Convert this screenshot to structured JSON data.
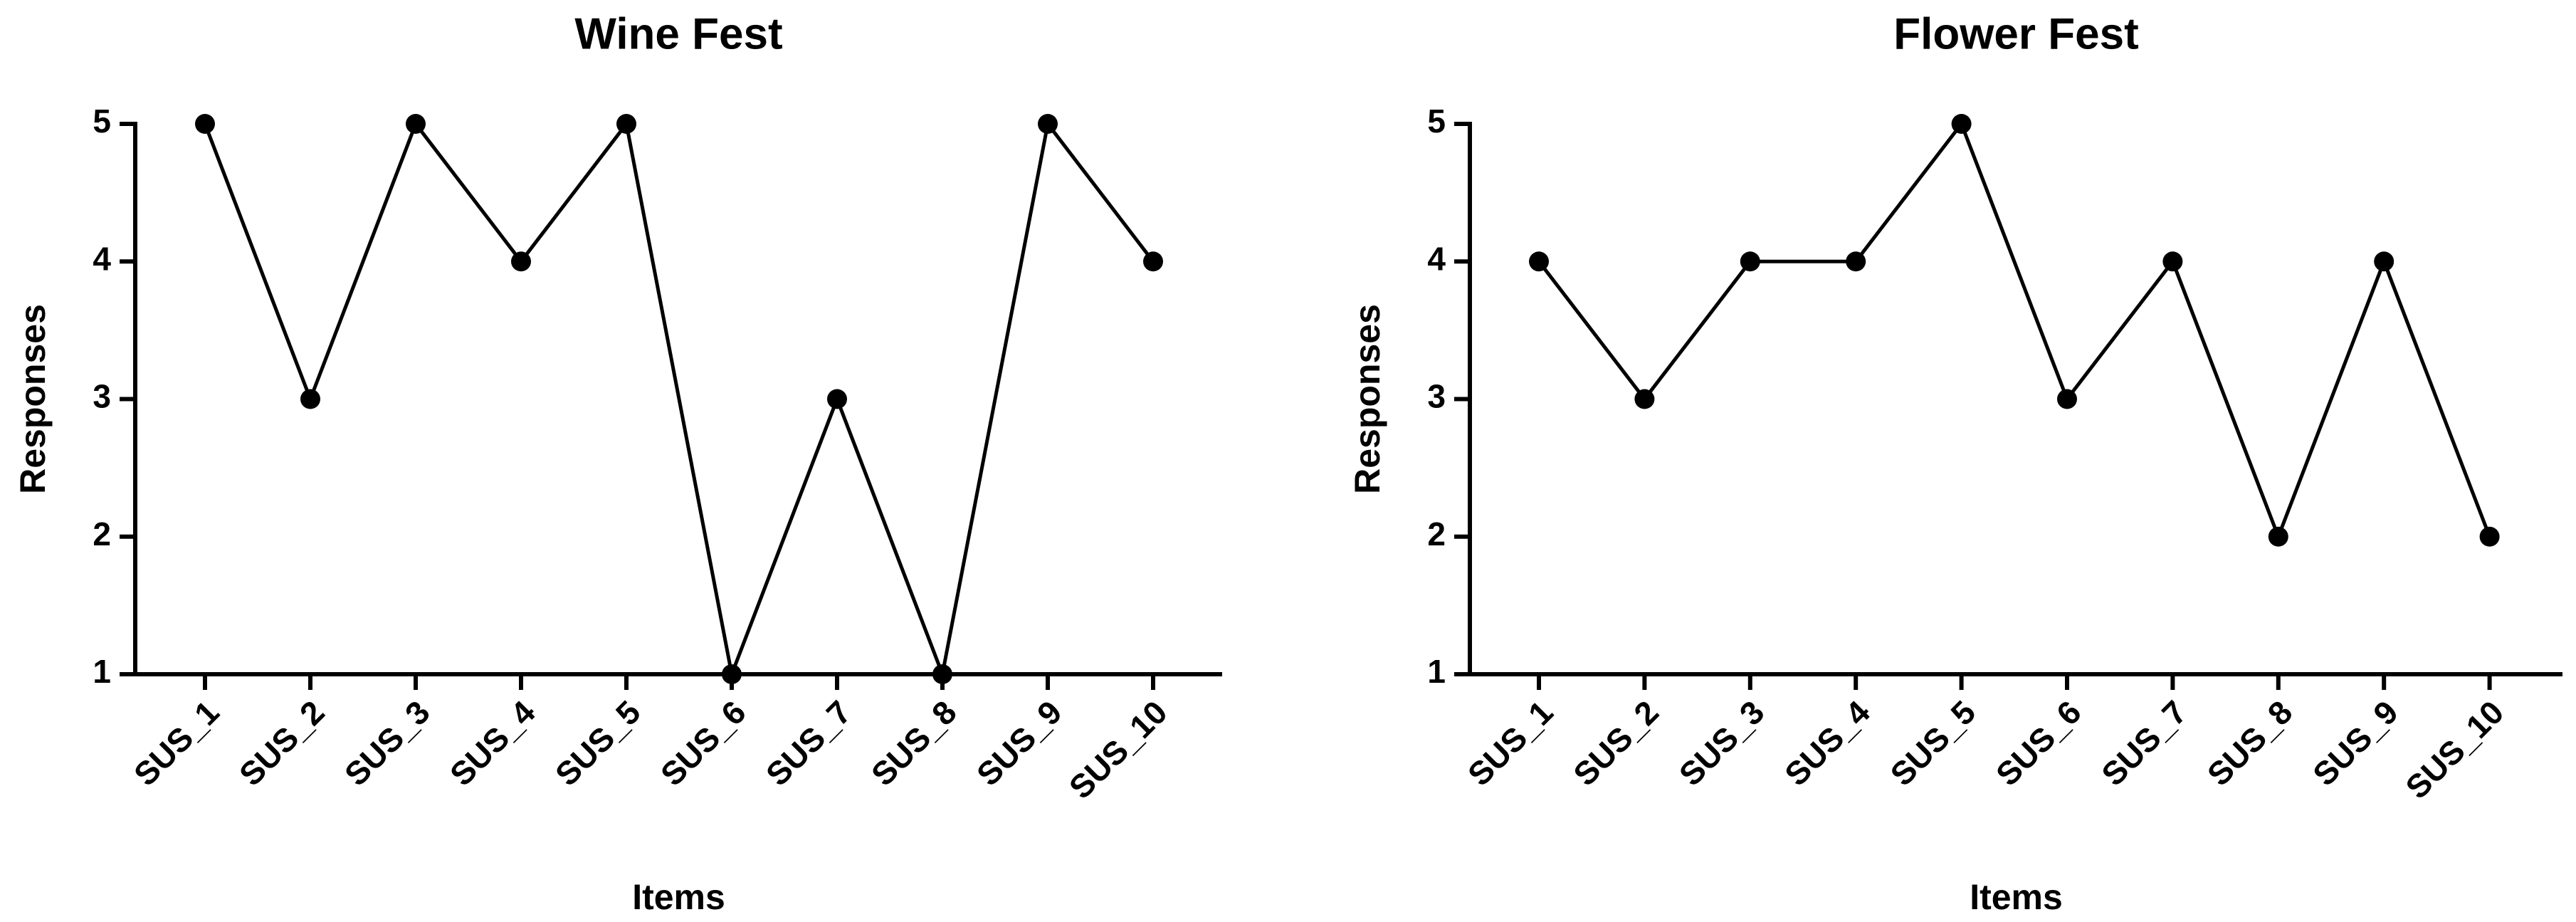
{
  "chart_data": [
    {
      "type": "line",
      "title": "Wine Fest",
      "x_label": "Items",
      "y_label": "Responses",
      "categories": [
        "SUS_1",
        "SUS_2",
        "SUS_3",
        "SUS_4",
        "SUS_5",
        "SUS_6",
        "SUS_7",
        "SUS_8",
        "SUS_9",
        "SUS_10"
      ],
      "values": [
        5,
        3,
        5,
        4,
        5,
        1,
        3,
        1,
        5,
        4
      ],
      "color": "#000000",
      "ylim": [
        1,
        5
      ],
      "yticks": [
        1,
        2,
        3,
        4,
        5
      ],
      "grid": false
    },
    {
      "type": "line",
      "title": "Flower Fest",
      "x_label": "Items",
      "y_label": "Responses",
      "categories": [
        "SUS_1",
        "SUS_2",
        "SUS_3",
        "SUS_4",
        "SUS_5",
        "SUS_6",
        "SUS_7",
        "SUS_8",
        "SUS_9",
        "SUS_10"
      ],
      "values": [
        4,
        3,
        4,
        4,
        5,
        3,
        4,
        2,
        4,
        2
      ],
      "color": "#000000",
      "ylim": [
        1,
        5
      ],
      "yticks": [
        1,
        2,
        3,
        4,
        5
      ],
      "grid": false
    }
  ]
}
